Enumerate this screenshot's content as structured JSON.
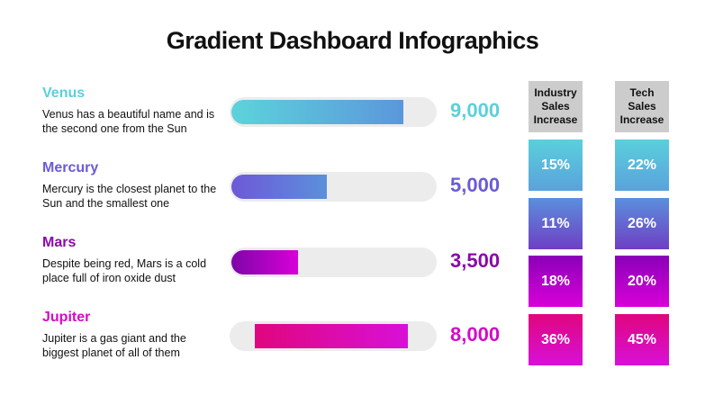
{
  "title": "Gradient Dashboard Infographics",
  "chart_data": {
    "type": "bar",
    "categories": [
      "Venus",
      "Mercury",
      "Mars",
      "Jupiter"
    ],
    "values": [
      9000,
      5000,
      3500,
      8000
    ],
    "value_labels": [
      "9,000",
      "5,000",
      "3,500",
      "8,000"
    ],
    "descriptions": [
      "Venus has a beautiful name and is the second one from the Sun",
      "Mercury is the closest planet to the Sun and the smallest one",
      "Despite being red, Mars is a cold place full of iron oxide dust",
      "Jupiter is a gas giant and the biggest planet of all of them"
    ],
    "colors": [
      "#5bd0dc",
      "#6a5bd8",
      "#8a0aa8",
      "#d40ac8"
    ],
    "gradients": [
      [
        "#5dd3db",
        "#5b97db"
      ],
      [
        "#6e58d8",
        "#5b90db"
      ],
      [
        "#7d06a8",
        "#d800d8"
      ],
      [
        "#e0067e",
        "#d810d8"
      ]
    ],
    "xlim": [
      0,
      10000
    ],
    "table": {
      "columns": [
        "Industry Sales Increase",
        "Tech Sales Increase"
      ],
      "rows": [
        [
          "15%",
          "22%"
        ],
        [
          "11%",
          "26%"
        ],
        [
          "18%",
          "20%"
        ],
        [
          "36%",
          "45%"
        ]
      ],
      "box_gradients": [
        [
          "#5ad0dc",
          "#5aa2dc"
        ],
        [
          "#5a8fdc",
          "#6f3fc4"
        ],
        [
          "#8a00b8",
          "#d800d8"
        ],
        [
          "#e0067e",
          "#d810d8"
        ]
      ]
    }
  }
}
